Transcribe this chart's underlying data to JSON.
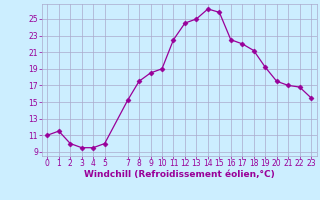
{
  "x": [
    0,
    1,
    2,
    3,
    4,
    5,
    7,
    8,
    9,
    10,
    11,
    12,
    13,
    14,
    15,
    16,
    17,
    18,
    19,
    20,
    21,
    22,
    23
  ],
  "y": [
    11,
    11.5,
    10,
    9.5,
    9.5,
    10,
    15.2,
    17.5,
    18.5,
    19,
    22.5,
    24.5,
    25,
    26.2,
    25.8,
    22.5,
    22,
    21.2,
    19.2,
    17.5,
    17,
    16.8,
    15.5
  ],
  "line_color": "#990099",
  "marker": "D",
  "marker_size": 2.5,
  "bg_color": "#cceeff",
  "grid_color": "#aaaacc",
  "tick_color": "#990099",
  "label_color": "#990099",
  "xlabel": "Windchill (Refroidissement éolien,°C)",
  "xlim": [
    -0.5,
    23.5
  ],
  "ylim": [
    8.5,
    26.8
  ],
  "yticks": [
    9,
    11,
    13,
    15,
    17,
    19,
    21,
    23,
    25
  ],
  "xticks": [
    0,
    1,
    2,
    3,
    4,
    5,
    7,
    8,
    9,
    10,
    11,
    12,
    13,
    14,
    15,
    16,
    17,
    18,
    19,
    20,
    21,
    22,
    23
  ],
  "tick_fontsize": 5.5,
  "xlabel_fontsize": 6.5
}
